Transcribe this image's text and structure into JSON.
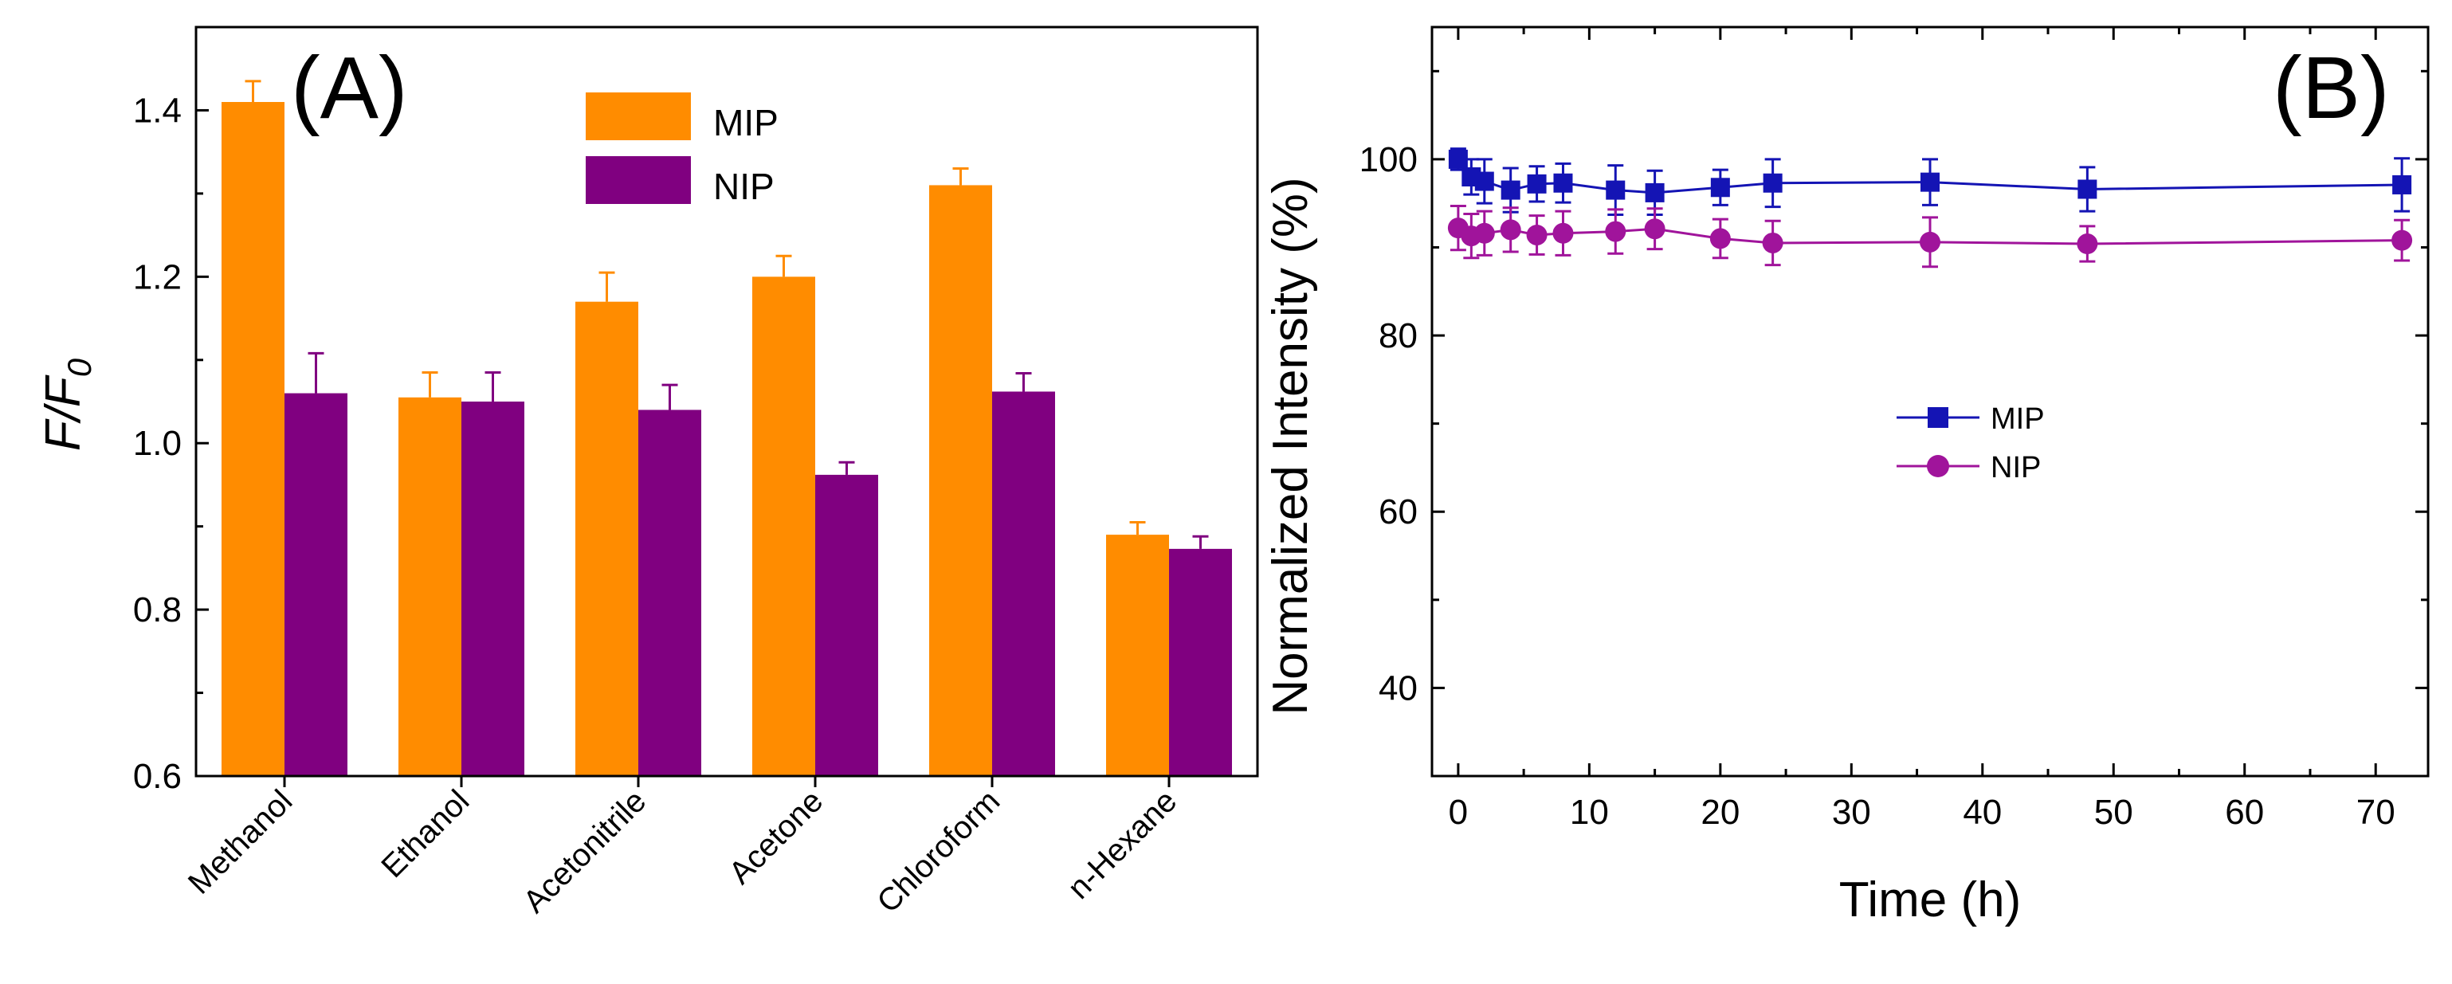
{
  "colors": {
    "mip_bar": "#FF8C00",
    "nip_bar": "#800080",
    "mip_line": "#1414B4",
    "nip_line": "#A0149B",
    "axis": "#000000",
    "background": "#FFFFFF"
  },
  "chart_data": [
    {
      "type": "bar",
      "panel_label": "(A)",
      "title": "",
      "xlabel": "",
      "ylabel_main": "F/F",
      "ylabel_sub": "0",
      "categories": [
        "Methanol",
        "Ethanol",
        "Acetonitrile",
        "Acetone",
        "Chloroform",
        "n-Hexane"
      ],
      "ylim": [
        0.6,
        1.5
      ],
      "yticks": [
        0.6,
        0.8,
        1.0,
        1.2,
        1.4
      ],
      "ytick_labels": [
        "0.6",
        "0.8",
        "1.0",
        "1.2",
        "1.4"
      ],
      "legend_position": "top-center",
      "series": [
        {
          "name": "MIP",
          "values": [
            1.41,
            1.055,
            1.17,
            1.2,
            1.31,
            0.89
          ],
          "errors": [
            0.025,
            0.03,
            0.035,
            0.025,
            0.02,
            0.015
          ]
        },
        {
          "name": "NIP",
          "values": [
            1.06,
            1.05,
            1.04,
            0.962,
            1.062,
            0.873
          ],
          "errors": [
            0.048,
            0.035,
            0.03,
            0.015,
            0.022,
            0.015
          ]
        }
      ]
    },
    {
      "type": "line",
      "panel_label": "(B)",
      "title": "",
      "xlabel": "Time (h)",
      "ylabel": "Normalized Intensity (%)",
      "xlim": [
        -2,
        74
      ],
      "ylim": [
        30,
        115
      ],
      "xticks": [
        0,
        10,
        20,
        30,
        40,
        50,
        60,
        70
      ],
      "xtick_labels": [
        "0",
        "10",
        "20",
        "30",
        "40",
        "50",
        "60",
        "70"
      ],
      "yticks": [
        40,
        60,
        80,
        100
      ],
      "ytick_labels": [
        "40",
        "60",
        "80",
        "100"
      ],
      "legend_position": "center",
      "x": [
        0,
        1,
        2,
        4,
        6,
        8,
        12,
        15,
        20,
        24,
        36,
        48,
        72
      ],
      "series": [
        {
          "name": "MIP",
          "marker": "square",
          "values": [
            100.0,
            98.0,
            97.5,
            96.5,
            97.2,
            97.3,
            96.5,
            96.2,
            96.8,
            97.3,
            97.4,
            96.6,
            97.1
          ],
          "errors": [
            1.2,
            2.0,
            2.5,
            2.5,
            2.0,
            2.2,
            2.8,
            2.5,
            2.0,
            2.7,
            2.6,
            2.5,
            3.0
          ]
        },
        {
          "name": "NIP",
          "marker": "circle",
          "values": [
            92.2,
            91.3,
            91.6,
            92.0,
            91.4,
            91.6,
            91.8,
            92.1,
            91.0,
            90.5,
            90.6,
            90.4,
            90.8
          ],
          "errors": [
            2.5,
            2.5,
            2.5,
            2.5,
            2.2,
            2.5,
            2.5,
            2.3,
            2.2,
            2.5,
            2.8,
            2.0,
            2.3
          ]
        }
      ]
    }
  ]
}
